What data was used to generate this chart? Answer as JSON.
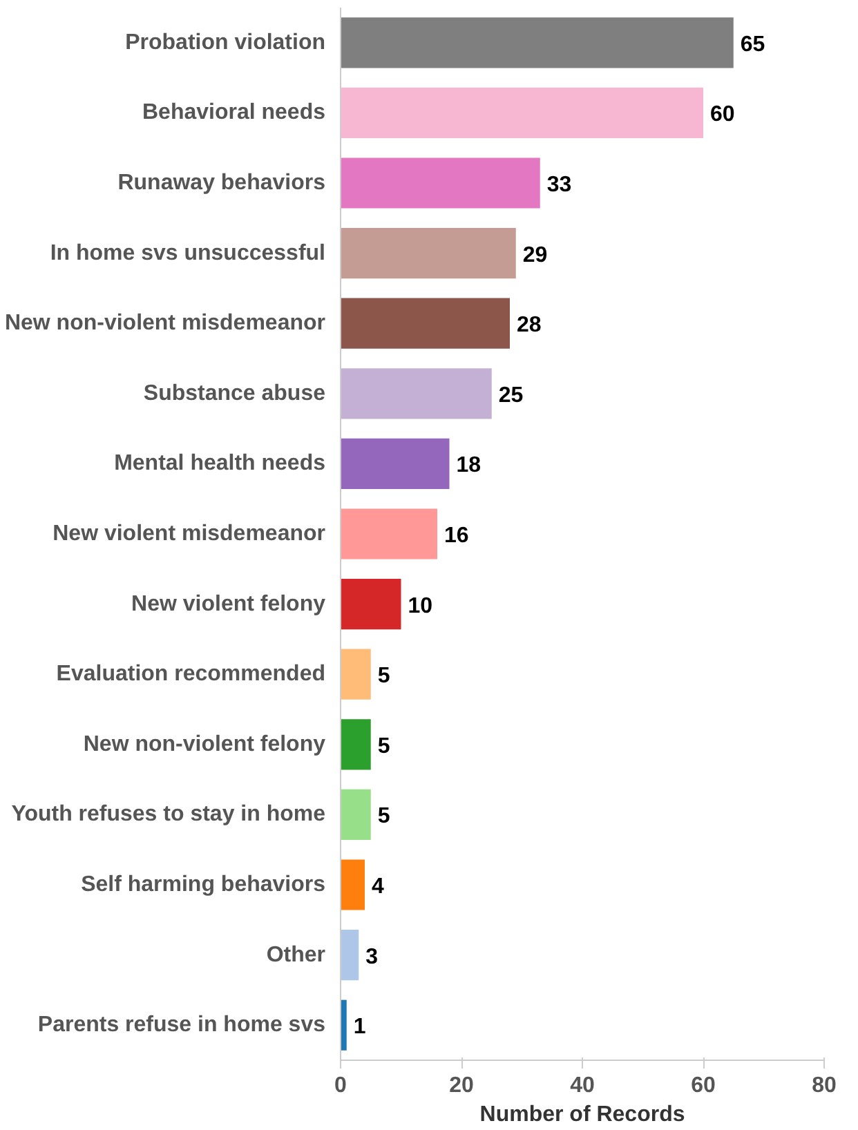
{
  "chart_data": {
    "type": "bar",
    "orientation": "horizontal",
    "xlabel": "Number of Records",
    "categories": [
      "Probation violation",
      "Behavioral needs",
      "Runaway behaviors",
      "In home svs unsuccessful",
      "New non-violent misdemeanor",
      "Substance abuse",
      "Mental health needs",
      "New violent misdemeanor",
      "New violent felony",
      "Evaluation recommended",
      "New non-violent felony",
      "Youth refuses to stay in home",
      "Self harming behaviors",
      "Other",
      "Parents refuse in home svs"
    ],
    "values": [
      65,
      60,
      33,
      29,
      28,
      25,
      18,
      16,
      10,
      5,
      5,
      5,
      4,
      3,
      1
    ],
    "colors": [
      "#7f7f7f",
      "#f7b6d2",
      "#e377c2",
      "#c49c94",
      "#8c564b",
      "#c5b0d5",
      "#9467bd",
      "#ff9896",
      "#d62728",
      "#ffbb78",
      "#2ca02c",
      "#98df8a",
      "#ff7f0e",
      "#aec7e8",
      "#1f77b4"
    ],
    "xlim": [
      0,
      80
    ],
    "xticks": [
      0,
      20,
      40,
      60,
      80
    ],
    "data_labels": true,
    "grid": false
  }
}
